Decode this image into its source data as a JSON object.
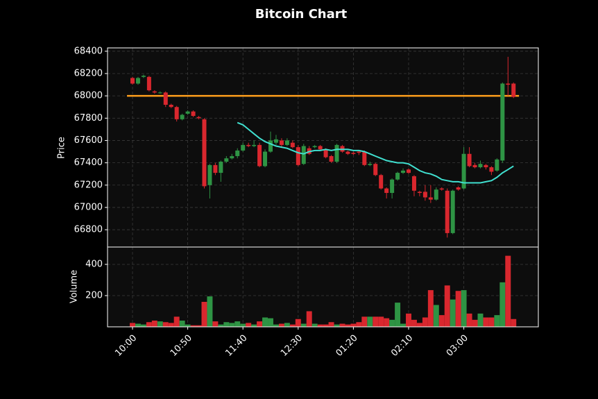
{
  "chart_data": {
    "type": "candlestick",
    "title": "Bitcoin Chart",
    "y_label": "Price",
    "volume_label": "Volume",
    "categories": [
      "10:00",
      null,
      null,
      null,
      null,
      null,
      null,
      null,
      null,
      null,
      "10:50",
      null,
      null,
      null,
      null,
      null,
      null,
      null,
      null,
      null,
      "11:40",
      null,
      null,
      null,
      null,
      null,
      null,
      null,
      null,
      null,
      "12:30",
      null,
      null,
      null,
      null,
      null,
      null,
      null,
      null,
      null,
      "01:20",
      null,
      null,
      null,
      null,
      null,
      null,
      null,
      null,
      null,
      "02:10",
      null,
      null,
      null,
      null,
      null,
      null,
      null,
      null,
      null,
      "03:00",
      null,
      null,
      null,
      null,
      null,
      null,
      null,
      null,
      null
    ],
    "open": [
      68160,
      68110,
      68170,
      68170,
      68040,
      68030,
      68030,
      67920,
      67900,
      67790,
      67840,
      67860,
      67810,
      67790,
      67200,
      67380,
      67310,
      67410,
      67440,
      67460,
      67510,
      67560,
      67550,
      67560,
      67370,
      67500,
      67580,
      67600,
      67560,
      67580,
      67540,
      67390,
      67530,
      67540,
      67550,
      67520,
      67460,
      67410,
      67550,
      67500,
      67490,
      67500,
      67500,
      67380,
      67390,
      67290,
      67170,
      67130,
      67250,
      67310,
      67340,
      67280,
      67140,
      67140,
      67090,
      67070,
      67170,
      67150,
      66770,
      67180,
      67170,
      67480,
      67380,
      67360,
      67380,
      67360,
      67330,
      67420,
      68110,
      68110
    ],
    "high": [
      68170,
      68170,
      68190,
      68180,
      68050,
      68040,
      68040,
      67930,
      67910,
      67840,
      67870,
      67870,
      67820,
      67800,
      67390,
      67400,
      67420,
      67460,
      67480,
      67530,
      67580,
      67580,
      67600,
      67580,
      67520,
      67680,
      67650,
      67620,
      67620,
      67600,
      67560,
      67570,
      67550,
      67560,
      67560,
      67530,
      67470,
      67570,
      67560,
      67510,
      67500,
      67510,
      67510,
      67410,
      67400,
      67300,
      67180,
      67260,
      67320,
      67350,
      67350,
      67290,
      67150,
      67200,
      67200,
      67180,
      67180,
      67170,
      67160,
      67190,
      67540,
      67540,
      67400,
      67420,
      67390,
      67370,
      67440,
      68120,
      68350,
      68120
    ],
    "low": [
      68100,
      68100,
      68160,
      68040,
      68020,
      68020,
      67900,
      67890,
      67770,
      67780,
      67830,
      67810,
      67790,
      67170,
      67080,
      67290,
      67230,
      67400,
      67430,
      67440,
      67500,
      67540,
      67540,
      67360,
      67360,
      67490,
      67560,
      67540,
      67550,
      67530,
      67370,
      67380,
      67470,
      67530,
      67510,
      67440,
      67400,
      67400,
      67490,
      67470,
      67470,
      67470,
      67370,
      67370,
      67280,
      67160,
      67080,
      67080,
      67240,
      67300,
      67300,
      67100,
      67100,
      67060,
      67040,
      67060,
      67150,
      66730,
      66760,
      67150,
      67160,
      67360,
      67350,
      67350,
      67340,
      67290,
      67320,
      67400,
      68000,
      67980
    ],
    "close": [
      68110,
      68160,
      68180,
      68050,
      68030,
      68030,
      67920,
      67900,
      67790,
      67830,
      67860,
      67820,
      67800,
      67190,
      67380,
      67310,
      67410,
      67440,
      67460,
      67510,
      67560,
      67550,
      67560,
      67370,
      67500,
      67600,
      67610,
      67560,
      67600,
      67540,
      67380,
      67550,
      67480,
      67550,
      67520,
      67450,
      67410,
      67560,
      67500,
      67480,
      67480,
      67490,
      67380,
      67390,
      67290,
      67170,
      67130,
      67250,
      67310,
      67330,
      67310,
      67150,
      67130,
      67090,
      67070,
      67160,
      67160,
      66770,
      67150,
      67160,
      67480,
      67370,
      67360,
      67390,
      67360,
      67320,
      67430,
      68110,
      68100,
      67990
    ],
    "volume": [
      25,
      20,
      15,
      30,
      40,
      35,
      30,
      25,
      65,
      40,
      15,
      10,
      10,
      160,
      195,
      35,
      15,
      30,
      25,
      35,
      20,
      25,
      15,
      35,
      60,
      55,
      15,
      20,
      25,
      15,
      50,
      20,
      100,
      20,
      15,
      15,
      30,
      15,
      20,
      15,
      20,
      30,
      65,
      65,
      65,
      65,
      55,
      45,
      155,
      20,
      85,
      45,
      25,
      60,
      235,
      140,
      75,
      265,
      175,
      230,
      235,
      85,
      45,
      85,
      60,
      60,
      75,
      285,
      455,
      50
    ],
    "up_color": "#2e9444",
    "down_color": "#d9272e",
    "moving_average": {
      "color": "#40e0d0",
      "values": [
        null,
        null,
        null,
        null,
        null,
        null,
        null,
        null,
        null,
        null,
        null,
        null,
        null,
        null,
        null,
        null,
        null,
        null,
        null,
        67760,
        67740,
        67700,
        67660,
        67620,
        67590,
        67570,
        67550,
        67540,
        67530,
        67510,
        67490,
        67480,
        67500,
        67510,
        67510,
        67520,
        67510,
        67520,
        67520,
        67520,
        67510,
        67510,
        67500,
        67480,
        67460,
        67440,
        67420,
        67410,
        67400,
        67400,
        67390,
        67360,
        67330,
        67310,
        67300,
        67280,
        67250,
        67240,
        67230,
        67230,
        67220,
        67220,
        67220,
        67220,
        67230,
        67240,
        67270,
        67310,
        67340,
        67370
      ]
    },
    "hline": {
      "value": 68000,
      "color": "#ff9f1c"
    },
    "ylim": [
      66645,
      68430
    ],
    "yticks": [
      66800,
      67000,
      67200,
      67400,
      67600,
      67800,
      68000,
      68200,
      68400
    ],
    "volume_ylim": [
      0,
      511
    ],
    "volume_yticks": [
      200,
      400
    ],
    "grid": true
  }
}
